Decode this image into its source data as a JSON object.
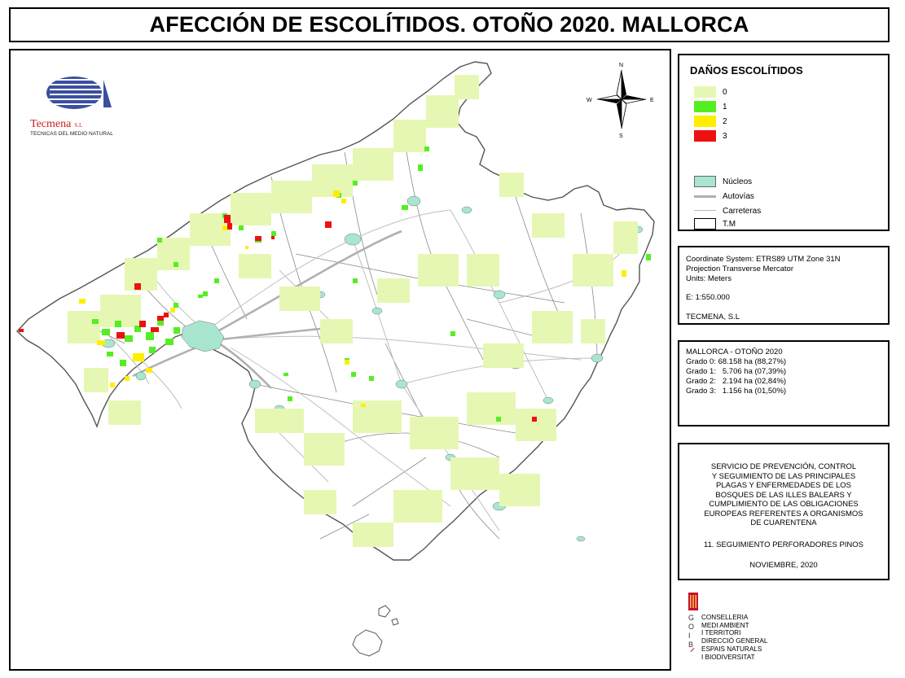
{
  "title": "AFECCIÓN DE ESCOLÍTIDOS. OTOÑO 2020. MALLORCA",
  "company": {
    "name": "Tecmena",
    "suffix": "S.L",
    "tagline": "TECNICAS DEL MEDIO NATURAL"
  },
  "compass": {
    "n": "N",
    "s": "S",
    "e": "E",
    "w": "W"
  },
  "legend": {
    "title": "DAÑOS ESCOLÍTIDOS",
    "damage_classes": [
      {
        "label": "0",
        "color": "#e6f7b3"
      },
      {
        "label": "1",
        "color": "#55ee22"
      },
      {
        "label": "2",
        "color": "#ffee00"
      },
      {
        "label": "3",
        "color": "#ee1111"
      }
    ],
    "features": [
      {
        "label": "Núcleos",
        "kind": "fill",
        "color": "#a8e6cf"
      },
      {
        "label": "Autovías",
        "kind": "thick-line",
        "color": "#b0b0b0"
      },
      {
        "label": "Carreteras",
        "kind": "thin-line",
        "color": "#b8b8b8"
      },
      {
        "label": "T.M",
        "kind": "outline",
        "color": "#000000"
      }
    ]
  },
  "coordinate_info": {
    "system": "Coordinate System: ETRS89 UTM Zone 31N",
    "projection": "Projection Transverse Mercator",
    "units": "Units: Meters",
    "scale": "E: 1:550.000",
    "author": "TECMENA, S.L"
  },
  "statistics": {
    "title": "MALLORCA - OTOÑO 2020",
    "rows": [
      "Grado 0: 68.158 ha (88,27%)",
      "Grado 1:   5.706 ha (07,39%)",
      "Grado 2:   2.194 ha (02,84%)",
      "Grado 3:   1.156 ha (01,50%)"
    ]
  },
  "service": {
    "lines": [
      "SERVICIO DE PREVENCIÓN, CONTROL",
      "Y SEGUIMIENTO DE LAS PRINCIPALES",
      "PLAGAS Y ENFERMEDADES DE LOS",
      "BOSQUES DE LAS ILLES BALEARS Y",
      "CUMPLIMIENTO DE LAS OBLIGACIONES",
      "EUROPEAS REFERENTES A ORGANISMOS",
      "DE CUARENTENA"
    ],
    "section": "11. SEGUIMIENTO PERFORADORES PINOS",
    "date": "NOVIEMBRE, 2020"
  },
  "govt_logo": {
    "letters": [
      "G",
      "O",
      "I",
      "B"
    ],
    "lines": [
      "CONSELLERIA",
      "MEDI AMBIENT",
      "I TERRITORI",
      "DIRECCIÓ GENERAL",
      "ESPAIS NATURALS",
      "I BIODIVERSITAT"
    ]
  },
  "colors": {
    "island_outline": "#555555",
    "municipal_border": "#7a7a7a",
    "background": "#ffffff"
  }
}
